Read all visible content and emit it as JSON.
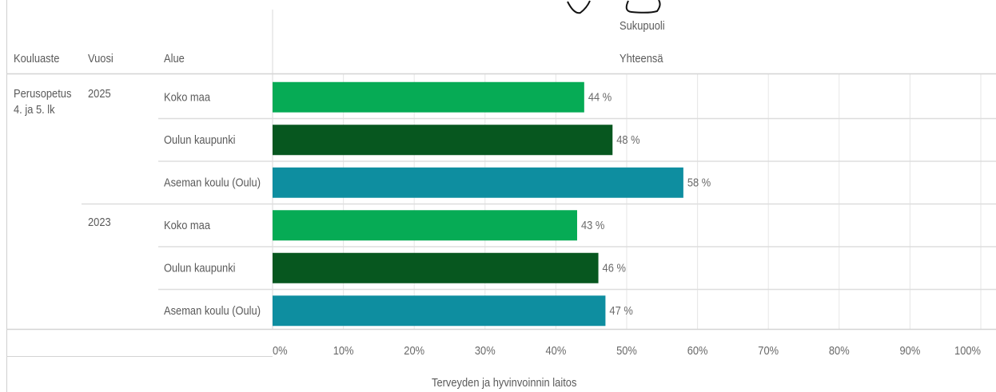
{
  "header": {
    "group_label": "Sukupuoli",
    "group_value": "Yhteensä",
    "col_level": "Kouluaste",
    "col_year": "Vuosi",
    "col_area": "Alue"
  },
  "rows": {
    "level_line1": "Perusopetus",
    "level_line2": "4. ja 5. lk",
    "years": [
      "2025",
      "2023"
    ]
  },
  "footer": {
    "source": "Terveyden ja hyvinvoinnin laitos"
  },
  "colors": {
    "koko_maa": "#06ab55",
    "oulun_kaupunki": "#07571f",
    "aseman_koulu": "#0e8ea0"
  },
  "chart_data": {
    "type": "bar",
    "orientation": "horizontal",
    "categories": [
      "Koko maa",
      "Oulun kaupunki",
      "Aseman koulu (Oulu)",
      "Koko maa",
      "Oulun kaupunki",
      "Aseman koulu (Oulu)"
    ],
    "groups": [
      "2025",
      "2025",
      "2025",
      "2023",
      "2023",
      "2023"
    ],
    "values": [
      44,
      48,
      58,
      43,
      46,
      47
    ],
    "labels": [
      "44 %",
      "48 %",
      "58 %",
      "43 %",
      "46 %",
      "47 %"
    ],
    "colors": [
      "#06ab55",
      "#07571f",
      "#0e8ea0",
      "#06ab55",
      "#07571f",
      "#0e8ea0"
    ],
    "xlim": [
      0,
      100
    ],
    "xticks": [
      "0%",
      "10%",
      "20%",
      "30%",
      "40%",
      "50%",
      "60%",
      "70%",
      "80%",
      "90%",
      "100%"
    ],
    "xlabel": "Terveyden ja hyvinvoinnin laitos",
    "grid": true
  }
}
